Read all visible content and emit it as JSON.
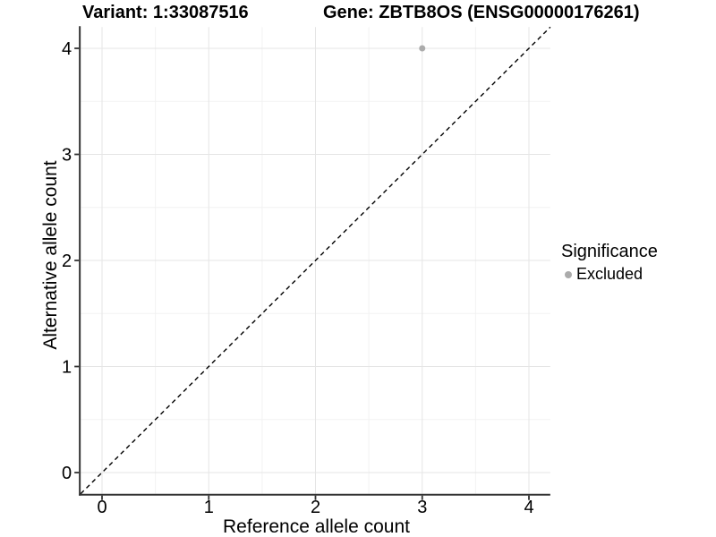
{
  "chart_data": {
    "type": "scatter",
    "title_left": "Variant: 1:33087516",
    "title_right": "Gene: ZBTB8OS (ENSG00000176261)",
    "xlabel": "Reference allele count",
    "ylabel": "Alternative allele count",
    "xlim": [
      -0.2,
      4.2
    ],
    "ylim": [
      -0.2,
      4.2
    ],
    "xticks": [
      0,
      1,
      2,
      3,
      4
    ],
    "yticks": [
      0,
      1,
      2,
      3,
      4
    ],
    "minor_step": 0.5,
    "grid": "major and minor gridlines, light gray on white panel",
    "points": [
      {
        "x": 3,
        "y": 4,
        "significance": "Excluded"
      }
    ],
    "reference_line": {
      "type": "identity y=x",
      "style": "dashed",
      "from": -0.2,
      "to": 4.2
    },
    "legend": {
      "title": "Significance",
      "position": "right",
      "items": [
        {
          "label": "Excluded",
          "marker": "circle",
          "color": "#ababab"
        }
      ]
    },
    "colors": {
      "point": "#ababab",
      "grid_major": "#e5e5e5",
      "grid_minor": "#f2f2f2",
      "axis": "#333333",
      "line": "#000000",
      "text": "#000000",
      "background": "#ffffff"
    }
  }
}
